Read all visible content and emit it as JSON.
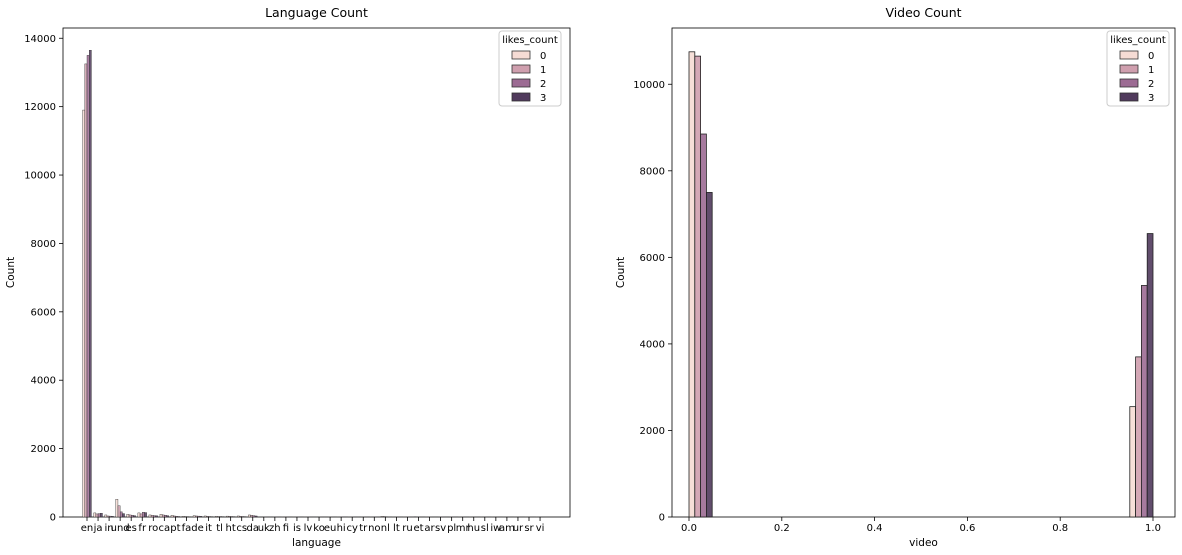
{
  "chart_data": [
    {
      "type": "bar",
      "title": "Language Count",
      "xlabel": "language",
      "ylabel": "Count",
      "ylim": [
        0,
        14300
      ],
      "yticks": [
        0,
        2000,
        4000,
        6000,
        8000,
        10000,
        12000,
        14000
      ],
      "categories": [
        "en",
        "ja",
        "in",
        "und",
        "es",
        "fr",
        "ro",
        "ca",
        "pt",
        "fa",
        "de",
        "it",
        "tl",
        "ht",
        "cs",
        "da",
        "uk",
        "zh",
        "fi",
        "is",
        "lv",
        "ko",
        "eu",
        "hi",
        "cy",
        "tr",
        "no",
        "nl",
        "lt",
        "ru",
        "et",
        "ar",
        "sv",
        "pl",
        "mr",
        "hu",
        "sl",
        "iw",
        "am",
        "ur",
        "sr",
        "vi"
      ],
      "legend": {
        "title": "likes_count",
        "position": "top-right"
      },
      "series": [
        {
          "name": "0",
          "values": [
            11900,
            120,
            60,
            520,
            80,
            120,
            60,
            80,
            50,
            20,
            40,
            30,
            20,
            25,
            30,
            60,
            8,
            6,
            5,
            4,
            4,
            8,
            6,
            4,
            3,
            6,
            4,
            20,
            3,
            4,
            10,
            4,
            6,
            6,
            3,
            3,
            3,
            3,
            2,
            2,
            2,
            2
          ]
        },
        {
          "name": "1",
          "values": [
            13250,
            90,
            30,
            330,
            60,
            90,
            50,
            60,
            30,
            15,
            30,
            20,
            15,
            20,
            20,
            50,
            6,
            5,
            4,
            3,
            3,
            6,
            5,
            3,
            3,
            5,
            3,
            15,
            2,
            3,
            8,
            3,
            5,
            5,
            2,
            2,
            2,
            2,
            2,
            2,
            2,
            2
          ]
        },
        {
          "name": "2",
          "values": [
            13500,
            100,
            25,
            150,
            50,
            140,
            40,
            50,
            20,
            12,
            25,
            15,
            15,
            15,
            15,
            40,
            5,
            4,
            3,
            3,
            3,
            5,
            4,
            3,
            2,
            4,
            3,
            10,
            2,
            3,
            6,
            3,
            4,
            4,
            2,
            2,
            2,
            2,
            1,
            1,
            1,
            1
          ]
        },
        {
          "name": "3",
          "values": [
            13650,
            110,
            20,
            100,
            40,
            130,
            35,
            40,
            15,
            10,
            20,
            12,
            12,
            12,
            12,
            30,
            4,
            3,
            3,
            2,
            2,
            4,
            3,
            2,
            2,
            3,
            2,
            8,
            2,
            2,
            5,
            2,
            3,
            3,
            1,
            1,
            1,
            1,
            1,
            1,
            1,
            1
          ]
        }
      ]
    },
    {
      "type": "bar",
      "title": "Video Count",
      "xlabel": "video",
      "ylabel": "Count",
      "xlim": [
        -0.05,
        1.05
      ],
      "ylim": [
        0,
        11300
      ],
      "xticks": [
        "0.0",
        "0.2",
        "0.4",
        "0.6",
        "0.8",
        "1.0"
      ],
      "yticks": [
        0,
        2000,
        4000,
        6000,
        8000,
        10000
      ],
      "categories": [
        0,
        1
      ],
      "legend": {
        "title": "likes_count",
        "position": "top-right"
      },
      "series": [
        {
          "name": "0",
          "values": [
            10750,
            2550
          ]
        },
        {
          "name": "1",
          "values": [
            10650,
            3700
          ]
        },
        {
          "name": "2",
          "values": [
            8850,
            5350
          ]
        },
        {
          "name": "3",
          "values": [
            7500,
            6550
          ]
        }
      ]
    }
  ],
  "colors": [
    "#f5dbd4",
    "#cf9fae",
    "#9c6b93",
    "#503a5c"
  ]
}
